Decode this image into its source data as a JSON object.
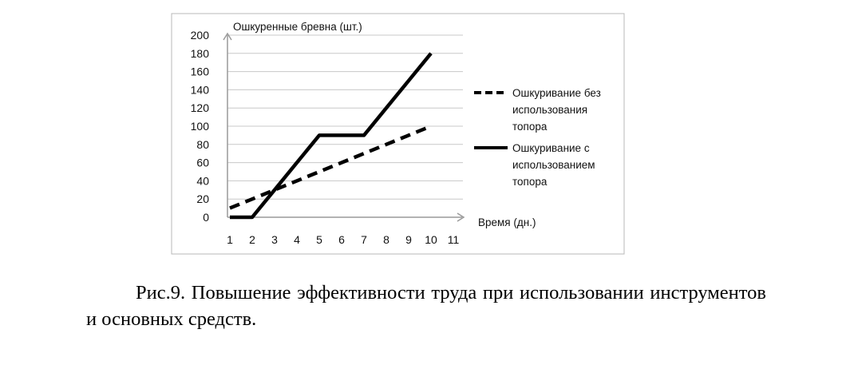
{
  "caption": "Рис.9. Повышение эффективности труда при использовании инструментов и основных средств.",
  "chart_data": {
    "type": "line",
    "ylabel": "Ошкуренные бревна (шт.)",
    "xlabel": "Время (дн.)",
    "categories": [
      "1",
      "2",
      "3",
      "4",
      "5",
      "6",
      "7",
      "8",
      "9",
      "10",
      "11"
    ],
    "y_ticks": [
      "0",
      "20",
      "40",
      "60",
      "80",
      "100",
      "120",
      "140",
      "160",
      "180",
      "200"
    ],
    "ylim": [
      0,
      200
    ],
    "xlim": [
      1,
      11
    ],
    "grid": true,
    "legend_position": "right",
    "series": [
      {
        "name": "Ошкуривание без использования топора",
        "legend_lines": [
          "Ошкуривание без",
          "использования",
          "топора"
        ],
        "style": "dashed",
        "color": "#000000",
        "x": [
          1,
          10
        ],
        "values": [
          10,
          100
        ]
      },
      {
        "name": "Ошкуривание с использованием топора",
        "legend_lines": [
          "Ошкуривание с",
          "использованием",
          "топора"
        ],
        "style": "solid",
        "color": "#000000",
        "x": [
          1,
          2,
          3,
          4,
          5,
          6,
          7,
          8,
          9,
          10
        ],
        "values": [
          0,
          0,
          30,
          60,
          90,
          90,
          90,
          120,
          150,
          180
        ]
      }
    ]
  }
}
